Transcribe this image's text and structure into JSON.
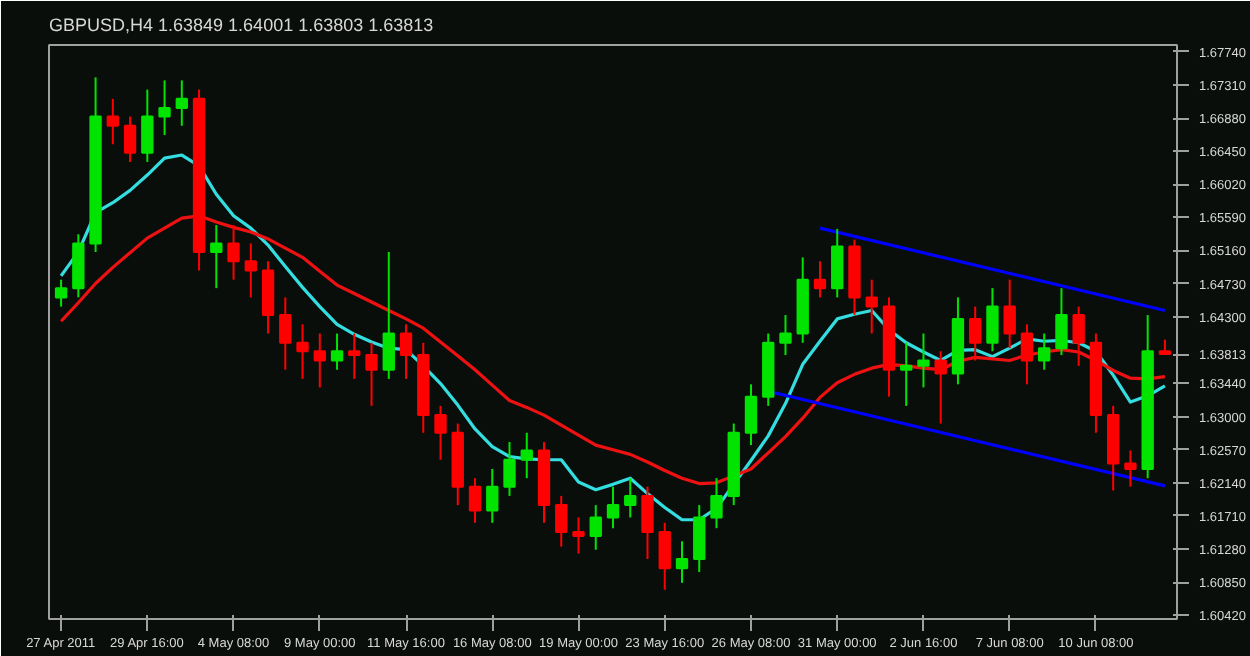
{
  "chart_data": {
    "type": "candlestick",
    "title": "GBPUSD,H4  1.63849 1.64001 1.63803 1.63813",
    "categories": [
      "27 Apr 2011",
      null,
      null,
      null,
      null,
      "29 Apr 16:00",
      null,
      null,
      null,
      null,
      "4 May 08:00",
      null,
      null,
      null,
      null,
      "9 May 00:00",
      null,
      null,
      null,
      null,
      "11 May 16:00",
      null,
      null,
      null,
      null,
      "16 May 08:00",
      null,
      null,
      null,
      null,
      "19 May 00:00",
      null,
      null,
      null,
      null,
      "23 May 16:00",
      null,
      null,
      null,
      null,
      "26 May 08:00",
      null,
      null,
      null,
      null,
      "31 May 00:00",
      null,
      null,
      null,
      null,
      "2 Jun 16:00",
      null,
      null,
      null,
      null,
      "7 Jun 08:00",
      null,
      null,
      null,
      null,
      "10 Jun 08:00",
      null,
      null,
      null,
      null
    ],
    "ohlc": [
      [
        1.6455,
        1.6478,
        1.6443,
        1.6467
      ],
      [
        1.6467,
        1.6537,
        1.6455,
        1.6525
      ],
      [
        1.6525,
        1.6741,
        1.6514,
        1.669
      ],
      [
        1.669,
        1.6713,
        1.6654,
        1.6678
      ],
      [
        1.6678,
        1.669,
        1.6631,
        1.6643
      ],
      [
        1.6643,
        1.6725,
        1.6631,
        1.669
      ],
      [
        1.669,
        1.6737,
        1.6666,
        1.6701
      ],
      [
        1.6701,
        1.6737,
        1.6678,
        1.6713
      ],
      [
        1.6713,
        1.6725,
        1.649,
        1.6514
      ],
      [
        1.6514,
        1.6549,
        1.6467,
        1.6525
      ],
      [
        1.6525,
        1.6549,
        1.6478,
        1.6502
      ],
      [
        1.6502,
        1.6525,
        1.6455,
        1.649
      ],
      [
        1.649,
        1.6502,
        1.6408,
        1.6432
      ],
      [
        1.6432,
        1.6455,
        1.6361,
        1.6396
      ],
      [
        1.6396,
        1.642,
        1.6349,
        1.6385
      ],
      [
        1.6385,
        1.6408,
        1.6338,
        1.6373
      ],
      [
        1.6373,
        1.6408,
        1.6361,
        1.6385
      ],
      [
        1.6385,
        1.6408,
        1.6349,
        1.638
      ],
      [
        1.638,
        1.6396,
        1.6314,
        1.6361
      ],
      [
        1.6361,
        1.6514,
        1.6349,
        1.6408
      ],
      [
        1.6408,
        1.642,
        1.6349,
        1.638
      ],
      [
        1.638,
        1.6396,
        1.6279,
        1.6302
      ],
      [
        1.6302,
        1.6314,
        1.6244,
        1.6279
      ],
      [
        1.6279,
        1.6291,
        1.6185,
        1.6209
      ],
      [
        1.6209,
        1.622,
        1.6162,
        1.6178
      ],
      [
        1.6178,
        1.6232,
        1.6162,
        1.6209
      ],
      [
        1.6209,
        1.6267,
        1.6197,
        1.6244
      ],
      [
        1.6244,
        1.6279,
        1.622,
        1.6256
      ],
      [
        1.6256,
        1.6267,
        1.6162,
        1.6185
      ],
      [
        1.6185,
        1.6197,
        1.6131,
        1.615
      ],
      [
        1.615,
        1.6169,
        1.6122,
        1.6145
      ],
      [
        1.6145,
        1.6185,
        1.6127,
        1.6169
      ],
      [
        1.6169,
        1.6209,
        1.6155,
        1.6185
      ],
      [
        1.6185,
        1.622,
        1.6169,
        1.6197
      ],
      [
        1.6197,
        1.6209,
        1.6115,
        1.615
      ],
      [
        1.615,
        1.6162,
        1.6075,
        1.6103
      ],
      [
        1.6103,
        1.6138,
        1.6084,
        1.6115
      ],
      [
        1.6115,
        1.6185,
        1.6098,
        1.6169
      ],
      [
        1.6169,
        1.622,
        1.6155,
        1.6197
      ],
      [
        1.6197,
        1.6291,
        1.6185,
        1.6279
      ],
      [
        1.6279,
        1.6342,
        1.6263,
        1.6326
      ],
      [
        1.6326,
        1.6408,
        1.6314,
        1.6396
      ],
      [
        1.6396,
        1.6432,
        1.638,
        1.6408
      ],
      [
        1.6408,
        1.6507,
        1.6396,
        1.6478
      ],
      [
        1.6478,
        1.6502,
        1.6455,
        1.6467
      ],
      [
        1.6467,
        1.6544,
        1.6455,
        1.6521
      ],
      [
        1.6521,
        1.653,
        1.6432,
        1.6455
      ],
      [
        1.6455,
        1.6478,
        1.6408,
        1.6443
      ],
      [
        1.6443,
        1.6455,
        1.6326,
        1.6361
      ],
      [
        1.6361,
        1.6396,
        1.6314,
        1.6366
      ],
      [
        1.6366,
        1.6408,
        1.6338,
        1.6373
      ],
      [
        1.6373,
        1.6385,
        1.6291,
        1.6356
      ],
      [
        1.6356,
        1.6455,
        1.6342,
        1.6427
      ],
      [
        1.6427,
        1.6443,
        1.6373,
        1.6396
      ],
      [
        1.6396,
        1.6467,
        1.6385,
        1.6443
      ],
      [
        1.6443,
        1.6478,
        1.6389,
        1.6408
      ],
      [
        1.6408,
        1.642,
        1.6342,
        1.6373
      ],
      [
        1.6373,
        1.6408,
        1.6361,
        1.6389
      ],
      [
        1.6389,
        1.6467,
        1.638,
        1.6432
      ],
      [
        1.6432,
        1.6443,
        1.6366,
        1.6396
      ],
      [
        1.6396,
        1.6408,
        1.6279,
        1.6302
      ],
      [
        1.6302,
        1.6314,
        1.6204,
        1.6239
      ],
      [
        1.6239,
        1.6256,
        1.6209,
        1.6232
      ],
      [
        1.6232,
        1.6432,
        1.622,
        1.6385
      ],
      [
        1.63849,
        1.64001,
        1.63803,
        1.63813
      ]
    ],
    "colors": [
      "#00e400",
      "#00e400",
      "#00e400",
      "#ff0000",
      "#ff0000",
      "#00e400",
      "#00e400",
      "#00e400",
      "#ff0000",
      "#00e400",
      "#ff0000",
      "#ff0000",
      "#ff0000",
      "#ff0000",
      "#ff0000",
      "#ff0000",
      "#00e400",
      "#ff0000",
      "#ff0000",
      "#00e400",
      "#ff0000",
      "#ff0000",
      "#ff0000",
      "#ff0000",
      "#ff0000",
      "#00e400",
      "#00e400",
      "#00e400",
      "#ff0000",
      "#ff0000",
      "#ff0000",
      "#00e400",
      "#00e400",
      "#00e400",
      "#ff0000",
      "#ff0000",
      "#00e400",
      "#00e400",
      "#00e400",
      "#00e400",
      "#00e400",
      "#00e400",
      "#00e400",
      "#00e400",
      "#ff0000",
      "#00e400",
      "#ff0000",
      "#ff0000",
      "#ff0000",
      "#00e400",
      "#00e400",
      "#ff0000",
      "#00e400",
      "#ff0000",
      "#00e400",
      "#ff0000",
      "#ff0000",
      "#00e400",
      "#00e400",
      "#ff0000",
      "#ff0000",
      "#ff0000",
      "#ff0000",
      "#00e400",
      "#ff0000"
    ],
    "series": [
      {
        "type": "line",
        "color": "#33dde0",
        "values": [
          1.6483,
          1.6514,
          1.6565,
          1.6578,
          1.6594,
          1.6614,
          1.6636,
          1.664,
          1.6626,
          1.6589,
          1.6561,
          1.6545,
          1.6523,
          1.6495,
          1.6468,
          1.6443,
          1.642,
          1.6407,
          1.6397,
          1.6389,
          1.6387,
          1.6366,
          1.6343,
          1.6315,
          1.6284,
          1.6261,
          1.6248,
          1.6245,
          1.6244,
          1.6244,
          1.6215,
          1.6205,
          1.6212,
          1.622,
          1.62,
          1.6182,
          1.6166,
          1.6166,
          1.6181,
          1.6212,
          1.6243,
          1.6275,
          1.6317,
          1.6368,
          1.6398,
          1.6427,
          1.6433,
          1.6438,
          1.6413,
          1.6396,
          1.6384,
          1.6373,
          1.6386,
          1.6387,
          1.6378,
          1.6389,
          1.6401,
          1.6398,
          1.6399,
          1.6396,
          1.6385,
          1.6354,
          1.6319,
          1.6327,
          1.634
        ]
      },
      {
        "type": "line",
        "color": "#ee1111",
        "values": [
          1.6424,
          1.6448,
          1.6473,
          1.6494,
          1.6513,
          1.6532,
          1.6545,
          1.6558,
          1.6561,
          1.6553,
          1.6546,
          1.654,
          1.6531,
          1.6519,
          1.6507,
          1.6489,
          1.6471,
          1.646,
          1.6449,
          1.6438,
          1.6427,
          1.6415,
          1.6397,
          1.6379,
          1.6361,
          1.6341,
          1.6321,
          1.6312,
          1.6302,
          1.6289,
          1.6276,
          1.6263,
          1.6257,
          1.6251,
          1.6241,
          1.623,
          1.622,
          1.6213,
          1.6214,
          1.6223,
          1.6232,
          1.6253,
          1.6274,
          1.6298,
          1.6325,
          1.6344,
          1.6355,
          1.6363,
          1.6368,
          1.6366,
          1.6363,
          1.6361,
          1.6372,
          1.6377,
          1.6375,
          1.6373,
          1.638,
          1.6384,
          1.6387,
          1.6384,
          1.6373,
          1.636,
          1.635,
          1.6349,
          1.6352
        ]
      },
      {
        "type": "line",
        "color": "#0000ff",
        "values": [
          null,
          null,
          null,
          null,
          null,
          null,
          null,
          null,
          null,
          null,
          null,
          null,
          null,
          null,
          null,
          null,
          null,
          null,
          null,
          null,
          null,
          null,
          null,
          null,
          null,
          null,
          null,
          null,
          null,
          null,
          null,
          null,
          null,
          null,
          null,
          null,
          null,
          null,
          null,
          null,
          null,
          null,
          null,
          null,
          1.6545,
          null,
          null,
          null,
          null,
          null,
          null,
          null,
          null,
          null,
          null,
          null,
          null,
          null,
          null,
          null,
          null,
          null,
          null,
          null,
          1.6438
        ]
      },
      {
        "type": "line",
        "color": "#0000ff",
        "values": [
          null,
          null,
          null,
          null,
          null,
          null,
          null,
          null,
          null,
          null,
          null,
          null,
          null,
          null,
          null,
          null,
          null,
          null,
          null,
          null,
          null,
          null,
          null,
          null,
          null,
          null,
          null,
          null,
          null,
          null,
          null,
          null,
          null,
          null,
          null,
          null,
          null,
          null,
          null,
          null,
          null,
          1.6333,
          null,
          null,
          null,
          null,
          null,
          null,
          null,
          null,
          null,
          null,
          null,
          null,
          null,
          null,
          null,
          null,
          null,
          null,
          null,
          null,
          null,
          null,
          1.621
        ]
      }
    ],
    "ylim": [
      1.6037,
      1.6783
    ],
    "yticks": [
      {
        "value": 1.6774,
        "label": "1.67740"
      },
      {
        "value": 1.6731,
        "label": "1.67310"
      },
      {
        "value": 1.6688,
        "label": "1.66880"
      },
      {
        "value": 1.6645,
        "label": "1.66450"
      },
      {
        "value": 1.6602,
        "label": "1.66020"
      },
      {
        "value": 1.6559,
        "label": "1.65590"
      },
      {
        "value": 1.6516,
        "label": "1.65160"
      },
      {
        "value": 1.6473,
        "label": "1.64730"
      },
      {
        "value": 1.643,
        "label": "1.64300"
      },
      {
        "value": 1.63813,
        "label": "1.63813"
      },
      {
        "value": 1.6344,
        "label": "1.63440"
      },
      {
        "value": 1.63,
        "label": "1.63000"
      },
      {
        "value": 1.6257,
        "label": "1.62570"
      },
      {
        "value": 1.6214,
        "label": "1.62140"
      },
      {
        "value": 1.6171,
        "label": "1.61710"
      },
      {
        "value": 1.6128,
        "label": "1.61280"
      },
      {
        "value": 1.6085,
        "label": "1.60850"
      },
      {
        "value": 1.6042,
        "label": "1.60420"
      }
    ],
    "grid": false
  }
}
